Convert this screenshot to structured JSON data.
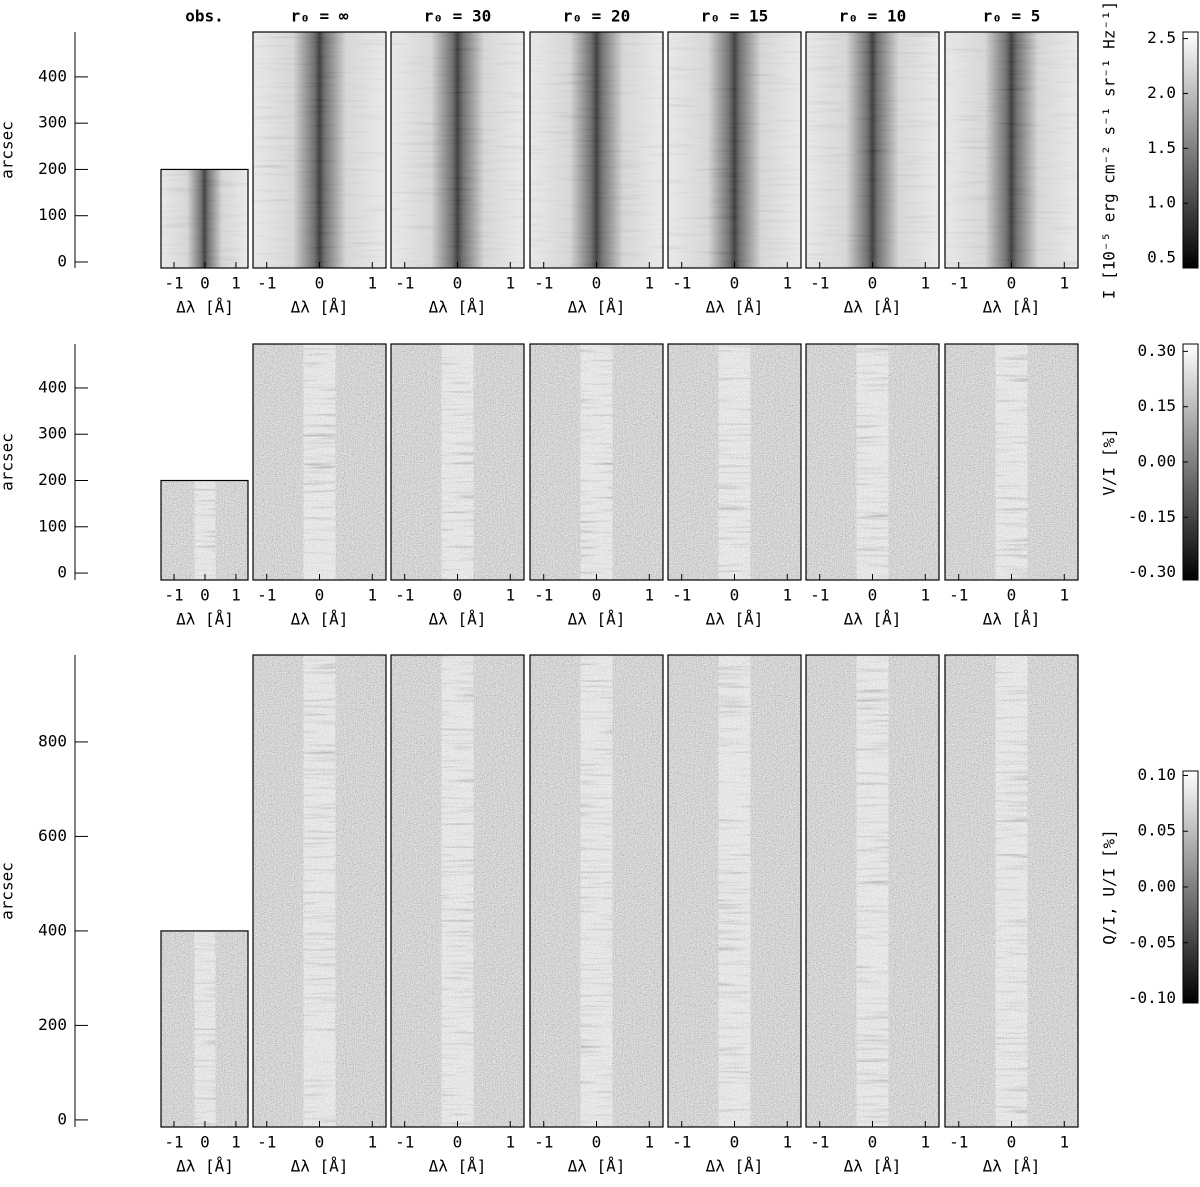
{
  "columns": [
    "obs.",
    "r₀ = ∞",
    "r₀ = 30",
    "r₀ = 20",
    "r₀ = 15",
    "r₀ = 10",
    "r₀ = 5"
  ],
  "xlabel": "Δλ [Å]",
  "xticks": [
    -1,
    0,
    1
  ],
  "obs_xlim": [
    -1.42,
    1.39
  ],
  "sim_xlim": [
    -1.26,
    1.26
  ],
  "rows": [
    {
      "ylabel": "arcsec",
      "ylim": [
        -13,
        497
      ],
      "yticks": [
        0,
        100,
        200,
        300,
        400
      ],
      "obs_ylim": [
        -13,
        200
      ],
      "colorbar": {
        "label": "I [10⁻⁵ erg cm⁻² s⁻¹ sr⁻¹ Hz⁻¹]",
        "lim": [
          0.41,
          2.56
        ],
        "ticks": [
          {
            "value": 0.5,
            "label": "0.5"
          },
          {
            "value": 1.0,
            "label": "1.0"
          },
          {
            "value": 1.5,
            "label": "1.5"
          },
          {
            "value": 2.0,
            "label": "2.0"
          },
          {
            "value": 2.5,
            "label": "2.5"
          }
        ]
      }
    },
    {
      "ylabel": "arcsec",
      "ylim": [
        -15,
        495
      ],
      "yticks": [
        0,
        100,
        200,
        300,
        400
      ],
      "obs_ylim": [
        -15,
        200
      ],
      "colorbar": {
        "label": "V/I [%]",
        "lim": [
          -0.32,
          0.32
        ],
        "ticks": [
          {
            "value": 0.3,
            "label": "0.30"
          },
          {
            "value": 0.15,
            "label": "0.15"
          },
          {
            "value": 0.0,
            "label": "0.00"
          },
          {
            "value": -0.15,
            "label": "-0.15"
          },
          {
            "value": -0.3,
            "label": "-0.30"
          }
        ]
      }
    },
    {
      "ylabel": "arcsec",
      "ylim": [
        -15,
        984
      ],
      "yticks": [
        0,
        200,
        400,
        600,
        800
      ],
      "obs_ylim": [
        -15,
        400
      ],
      "colorbar": {
        "label": "Q/I, U/I [%]",
        "lim": [
          -0.104,
          0.104
        ],
        "ticks": [
          {
            "value": 0.1,
            "label": "0.10"
          },
          {
            "value": 0.05,
            "label": "0.05"
          },
          {
            "value": 0.0,
            "label": "0.00"
          },
          {
            "value": -0.05,
            "label": "-0.05"
          },
          {
            "value": -0.1,
            "label": "-0.10"
          }
        ]
      }
    }
  ]
}
